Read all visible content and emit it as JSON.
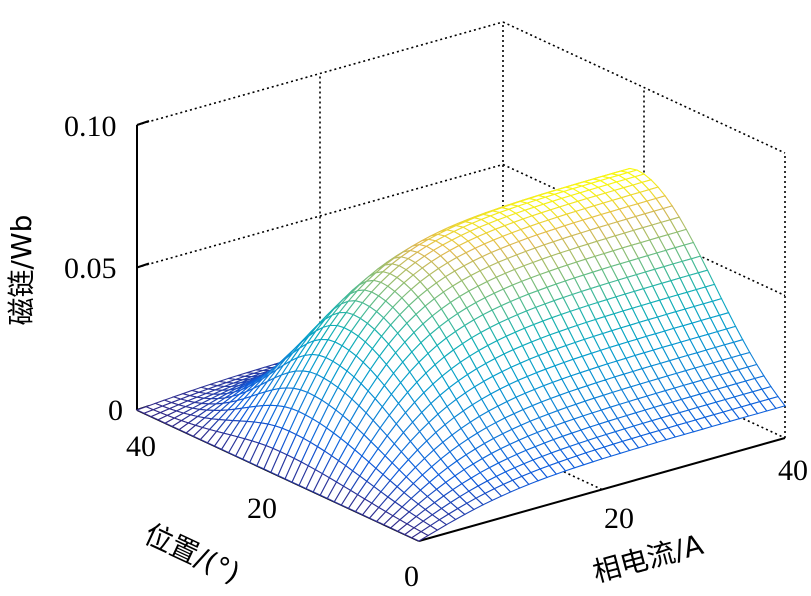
{
  "chart_data": {
    "type": "surface",
    "title": "",
    "xlabel": "相电流/A",
    "ylabel": "位置/(°)",
    "zlabel": "磁链/Wb",
    "xlim": [
      0,
      40
    ],
    "ylim": [
      0,
      40
    ],
    "zlim": [
      0,
      0.1
    ],
    "xticks": [
      "0",
      "20",
      "40"
    ],
    "yticks": [
      "0",
      "20",
      "40"
    ],
    "zticks": [
      "0",
      "0.05",
      "0.10"
    ],
    "grid": true,
    "colormap": "parula",
    "grid_resolution": 41,
    "model": {
      "description": "flux linkage rises with phase current and saturates; bell-shaped in rotor position with ridge near 20°",
      "psi_peak": 0.07,
      "current_saturation_A": 11,
      "ridge_position_deg": 21,
      "sigma_low_side_deg": 11,
      "sigma_high_side_deg": 7.5
    },
    "sampled_values": {
      "current_A": [
        0,
        10,
        20,
        30,
        40
      ],
      "position_deg": [
        0,
        10,
        20,
        30,
        40
      ],
      "psi_Wb": [
        [
          0.0,
          0.0,
          0.0,
          0.0,
          0.0
        ],
        [
          0.01,
          0.03,
          0.05,
          0.02,
          0.001
        ],
        [
          0.015,
          0.044,
          0.066,
          0.029,
          0.002
        ],
        [
          0.017,
          0.047,
          0.069,
          0.031,
          0.002
        ],
        [
          0.018,
          0.048,
          0.07,
          0.031,
          0.002
        ]
      ]
    }
  },
  "axes": {
    "z_tick_0": "0",
    "z_tick_1": "0.05",
    "z_tick_2": "0.10",
    "y_tick_40": "40",
    "y_tick_20": "20",
    "y_tick_0": "0",
    "x_tick_20": "20",
    "x_tick_40": "40",
    "zlabel": "磁链/Wb",
    "ylabel": "位置/(°)",
    "xlabel": "相电流/A"
  },
  "colors": {
    "axis": "#000000",
    "parula_low": "#352a87",
    "parula_mid": "#21b1c2",
    "parula_high": "#f9fb0e"
  }
}
